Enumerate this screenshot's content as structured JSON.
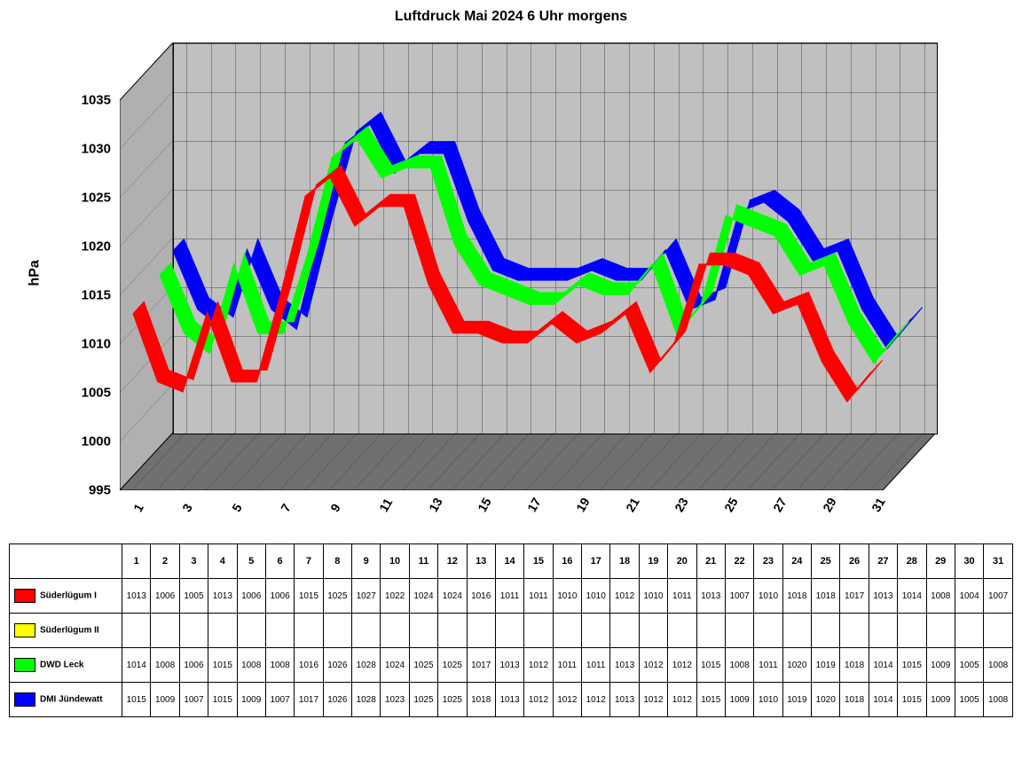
{
  "chart": {
    "title": "Luftdruck Mai 2024 6 Uhr morgens",
    "ylabel": "hPa",
    "ylim": [
      995,
      1035
    ],
    "ytick_step": 5,
    "yticks": [
      995,
      1000,
      1005,
      1010,
      1015,
      1020,
      1025,
      1030,
      1035
    ],
    "x_categories": [
      1,
      2,
      3,
      4,
      5,
      6,
      7,
      8,
      9,
      10,
      11,
      12,
      13,
      14,
      15,
      16,
      17,
      18,
      19,
      20,
      21,
      22,
      23,
      24,
      25,
      26,
      27,
      28,
      29,
      30,
      31
    ],
    "x_tick_labels": [
      1,
      3,
      5,
      7,
      9,
      11,
      13,
      15,
      17,
      19,
      21,
      23,
      25,
      27,
      29,
      31
    ],
    "background_color": "#ffffff",
    "wall_color": "#c0c0c0",
    "floor_color": "#808080",
    "grid_color": "#000000",
    "title_fontsize": 16,
    "label_fontsize": 16,
    "tick_fontsize": 15,
    "ribbon_width": 12,
    "depth_offset_x": 60,
    "depth_offset_y": 65,
    "series": [
      {
        "name": "Süderlügum I",
        "color": "#ff0000",
        "z_order": 0,
        "values": [
          1013,
          1006,
          1005,
          1013,
          1006,
          1006,
          1015,
          1025,
          1027,
          1022,
          1024,
          1024,
          1016,
          1011,
          1011,
          1010,
          1010,
          1012,
          1010,
          1011,
          1013,
          1007,
          1010,
          1018,
          1018,
          1017,
          1013,
          1014,
          1008,
          1004,
          1007
        ]
      },
      {
        "name": "Süderlügum II",
        "color": "#ffff00",
        "z_order": 1,
        "values": []
      },
      {
        "name": "DWD Leck",
        "color": "#00ff00",
        "z_order": 2,
        "values": [
          1014,
          1008,
          1006,
          1015,
          1008,
          1008,
          1016,
          1026,
          1028,
          1024,
          1025,
          1025,
          1017,
          1013,
          1012,
          1011,
          1011,
          1013,
          1012,
          1012,
          1015,
          1008,
          1011,
          1020,
          1019,
          1018,
          1014,
          1015,
          1009,
          1005,
          1008
        ]
      },
      {
        "name": "DMI Jündewatt",
        "color": "#0000ff",
        "z_order": 3,
        "values": [
          1015,
          1009,
          1007,
          1015,
          1009,
          1007,
          1017,
          1026,
          1028,
          1023,
          1025,
          1025,
          1018,
          1013,
          1012,
          1012,
          1012,
          1013,
          1012,
          1012,
          1015,
          1009,
          1010,
          1019,
          1020,
          1018,
          1014,
          1015,
          1009,
          1005,
          1008
        ]
      }
    ]
  },
  "table": {
    "header_label": "",
    "columns": [
      1,
      2,
      3,
      4,
      5,
      6,
      7,
      8,
      9,
      10,
      11,
      12,
      13,
      14,
      15,
      16,
      17,
      18,
      19,
      20,
      21,
      22,
      23,
      24,
      25,
      26,
      27,
      28,
      29,
      30,
      31
    ]
  }
}
